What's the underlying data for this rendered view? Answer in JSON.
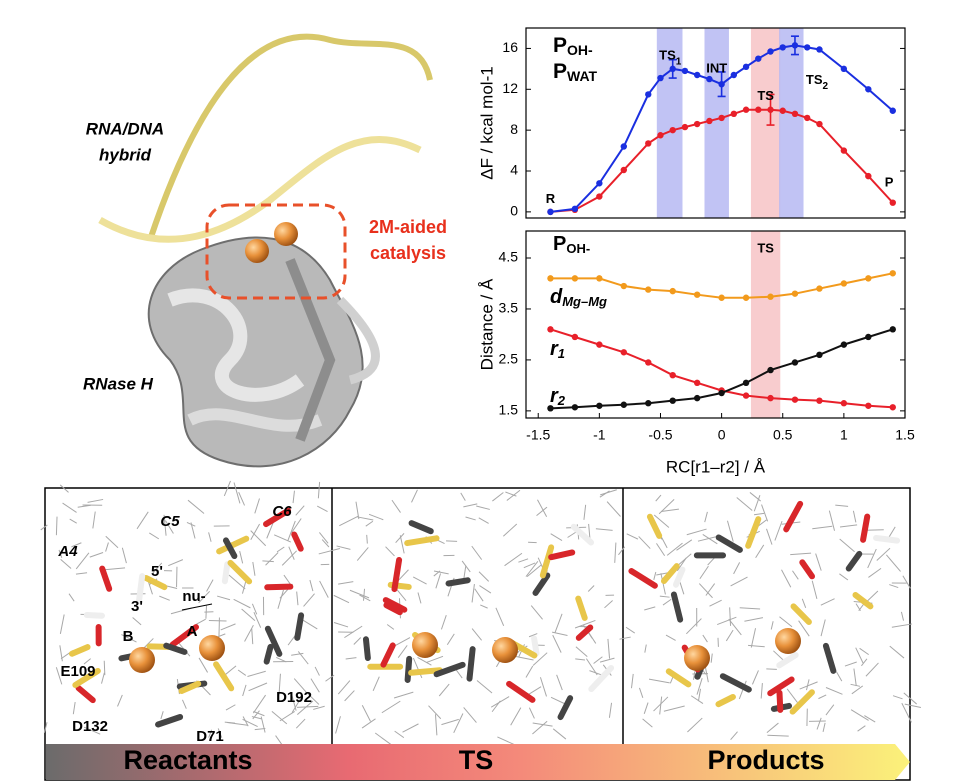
{
  "chart_data": [
    {
      "type": "line",
      "y_label": "ΔF / kcal mol-1",
      "x": [
        -1.4,
        -1.2,
        -1.0,
        -0.8,
        -0.6,
        -0.5,
        -0.4,
        -0.3,
        -0.2,
        -0.1,
        0,
        0.1,
        0.2,
        0.3,
        0.4,
        0.5,
        0.6,
        0.7,
        0.8,
        1.0,
        1.2,
        1.4
      ],
      "series": [
        {
          "name": "POH-",
          "color": "#e8202a",
          "values": [
            0,
            0.2,
            1.5,
            4.1,
            6.7,
            7.5,
            8.0,
            8.3,
            8.6,
            8.9,
            9.2,
            9.6,
            10.0,
            10.0,
            10.0,
            9.9,
            9.6,
            9.2,
            8.6,
            6.0,
            3.5,
            0.9
          ],
          "errors": [
            null,
            null,
            null,
            null,
            null,
            null,
            null,
            null,
            null,
            null,
            null,
            null,
            null,
            null,
            1.5,
            null,
            null,
            null,
            null,
            null,
            null,
            null
          ]
        },
        {
          "name": "PWAT",
          "color": "#1a2fe0",
          "values": [
            0,
            0.3,
            2.8,
            6.4,
            11.5,
            13.1,
            14.0,
            13.8,
            13.4,
            13.0,
            12.5,
            13.4,
            14.2,
            15.0,
            15.7,
            16.1,
            16.3,
            16.1,
            15.9,
            14.0,
            12.0,
            9.9
          ],
          "errors": [
            null,
            null,
            null,
            null,
            null,
            null,
            0.9,
            null,
            null,
            null,
            1.2,
            null,
            null,
            null,
            null,
            null,
            0.9,
            null,
            null,
            null,
            null,
            null
          ]
        }
      ],
      "bands": [
        {
          "x": [
            -0.53,
            -0.32
          ],
          "color": "#b6b9f2"
        },
        {
          "x": [
            -0.14,
            0.06
          ],
          "color": "#b6b9f2"
        },
        {
          "x": [
            0.24,
            0.48
          ],
          "color": "#f7c3c6"
        },
        {
          "x": [
            0.47,
            0.67
          ],
          "color": "#b6b9f2"
        }
      ],
      "annotations": [
        {
          "text": "TS1",
          "x": -0.42,
          "y": 15.2,
          "color": "#10107a"
        },
        {
          "text": "INT",
          "x": -0.04,
          "y": 14.0,
          "color": "#10107a"
        },
        {
          "text": "TS",
          "x": 0.36,
          "y": 11.3,
          "color": "#e8202a"
        },
        {
          "text": "TS2",
          "x": 0.78,
          "y": 12.8,
          "color": "#10107a"
        },
        {
          "text": "R",
          "x": -1.4,
          "y": 1.2,
          "color": "#000000"
        },
        {
          "text": "P",
          "x": 1.37,
          "y": 2.8,
          "color": "#000000"
        }
      ],
      "xlim": [
        -1.6,
        1.5
      ],
      "ylim": [
        -0.6,
        18
      ],
      "yticks": [
        0,
        4,
        8,
        12,
        16
      ]
    },
    {
      "type": "line",
      "title": "POH-",
      "x_label": "RC[r1–r2] / Å",
      "y_label": "Distance / Å",
      "x": [
        -1.4,
        -1.2,
        -1.0,
        -0.8,
        -0.6,
        -0.4,
        -0.2,
        0,
        0.2,
        0.4,
        0.6,
        0.8,
        1.0,
        1.2,
        1.4
      ],
      "series": [
        {
          "name": "dMg–Mg",
          "color": "#f29a1c",
          "values": [
            4.1,
            4.1,
            4.1,
            3.95,
            3.88,
            3.85,
            3.78,
            3.72,
            3.72,
            3.74,
            3.8,
            3.9,
            4.0,
            4.1,
            4.2
          ]
        },
        {
          "name": "r1",
          "color": "#e8202a",
          "values": [
            3.1,
            2.95,
            2.8,
            2.65,
            2.45,
            2.2,
            2.05,
            1.9,
            1.8,
            1.75,
            1.72,
            1.7,
            1.65,
            1.6,
            1.57
          ]
        },
        {
          "name": "r2",
          "color": "#111111",
          "values": [
            1.55,
            1.57,
            1.6,
            1.62,
            1.65,
            1.7,
            1.75,
            1.85,
            2.05,
            2.3,
            2.45,
            2.6,
            2.8,
            2.95,
            3.1
          ]
        }
      ],
      "bands": [
        {
          "x": [
            0.24,
            0.48
          ],
          "color": "#f7c3c6"
        }
      ],
      "annotations": [
        {
          "text": "TS",
          "x": 0.36,
          "y": 4.68,
          "color": "#e8202a"
        }
      ],
      "xlim": [
        -1.6,
        1.5
      ],
      "ylim": [
        1.36,
        5.03
      ],
      "xticks": [
        -1.5,
        -1,
        -0.5,
        0,
        0.5,
        1,
        1.5
      ],
      "yticks": [
        1.5,
        2.5,
        3.5,
        4.5
      ]
    }
  ],
  "figure_labels": {
    "hybrid": [
      "RNA/DNA",
      "hybrid"
    ],
    "catalysis": [
      "2M-aided",
      "catalysis"
    ],
    "enzyme": "RNase H"
  },
  "structure_labels": [
    "A4",
    "C5",
    "C6",
    "5'",
    "3'",
    "nu-",
    "B",
    "A",
    "E109",
    "D132",
    "D71",
    "D192"
  ],
  "stages": [
    "Reactants",
    "TS",
    "Products"
  ]
}
